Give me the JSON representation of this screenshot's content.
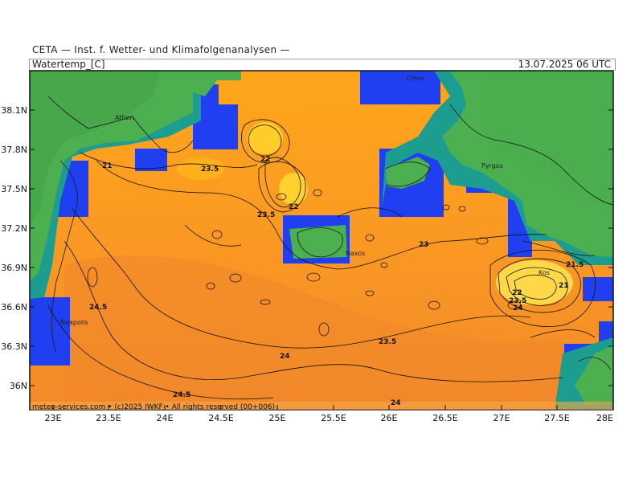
{
  "header": {
    "organization": "CETA — Inst. f. Wetter- und Klimafolgenanalysen —",
    "variable": "Watertemp_[C]",
    "valid_time": "13.07.2025 06 UTC"
  },
  "footer": {
    "credit": "meteo-services.com • (c)2025 IWKF • All rights reserved (00+006)"
  },
  "axes": {
    "lat_labels": [
      "38.1N",
      "37.8N",
      "37.5N",
      "37.2N",
      "36.9N",
      "36.6N",
      "36.3N",
      "36N"
    ],
    "lon_labels": [
      "23E",
      "23.5E",
      "24E",
      "24.5E",
      "25E",
      "25.5E",
      "26E",
      "26.5E",
      "27E",
      "27.5E",
      "28E"
    ]
  },
  "places": [
    "Athen",
    "Chios",
    "Pyrgos",
    "Naxos",
    "Kos",
    "Neapolis"
  ],
  "contour_labels": [
    "21",
    "23.5",
    "22",
    "22",
    "23.5",
    "23",
    "24.5",
    "23.5",
    "24",
    "24.5",
    "24",
    "21.5",
    "21",
    "22",
    "23.5",
    "24"
  ],
  "colors": {
    "land": "#4caf50",
    "sea_warm": "#f0902a",
    "sea_mid": "#ffa21a",
    "sea_cool": "#ffcf2a",
    "coast_cold": "#1f3ff0",
    "coast_teal": "#1d8f8a"
  }
}
